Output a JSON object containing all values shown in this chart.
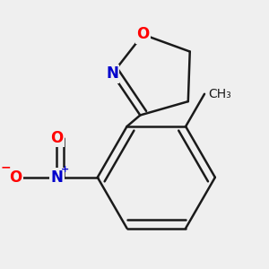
{
  "background_color": "#efefef",
  "bond_color": "#1a1a1a",
  "bond_width": 1.8,
  "atom_colors": {
    "O": "#ff0000",
    "N": "#0000cc",
    "C": "#1a1a1a"
  },
  "font_size_atom": 12,
  "font_size_small": 8,
  "font_size_ch3": 10
}
